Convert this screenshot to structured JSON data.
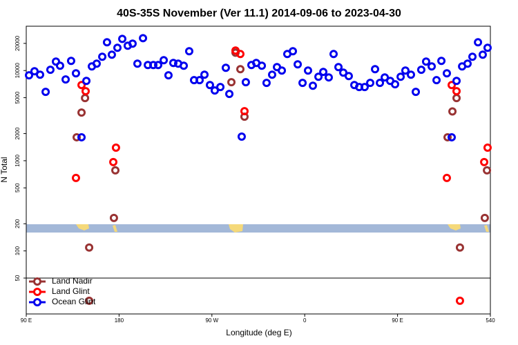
{
  "chart_data": {
    "type": "scatter",
    "title": "40S-35S November (Ver 11.1)   2014-09-06 to 2023-04-30",
    "x_label": "Longitude (deg E)",
    "y_label": "N Total",
    "log_y": true,
    "xlim": [
      90,
      540
    ],
    "ylim": [
      20,
      31000
    ],
    "xticks": [
      {
        "value": 90,
        "label": "90 E"
      },
      180,
      {
        "value": 270,
        "label": "90 W"
      },
      {
        "value": 360,
        "label": "0"
      },
      {
        "value": 450,
        "label": "90 E"
      },
      540
    ],
    "yticks": [
      50,
      100,
      200,
      500,
      1000,
      2000,
      5000,
      10000,
      20000
    ],
    "legend": "lower left",
    "series": [
      {
        "name": "Land Nadir",
        "color": "#993333",
        "x": [
          138.9,
          143.6,
          147,
          151,
          151,
          175,
          176.4,
          288.9,
          292.9,
          297.6,
          301.6,
          498.5,
          503.2,
          507.2,
          510.5,
          534.6,
          536.7
        ],
        "values": [
          1820,
          3420,
          4950,
          109,
          28,
          232,
          782,
          7420,
          15780,
          10350,
          3080,
          1820,
          3520,
          4950,
          109,
          232,
          782
        ]
      },
      {
        "name": "Land Glint",
        "color": "#ff0000",
        "x": [
          138.2,
          143.6,
          147.6,
          174.4,
          177,
          292.9,
          297.6,
          301.6,
          497.8,
          502.5,
          507.2,
          510.5,
          534,
          537.3
        ],
        "values": [
          644,
          6910,
          5900,
          966,
          1396,
          16650,
          15240,
          3540,
          644,
          6910,
          5900,
          28,
          966,
          1396
        ]
      },
      {
        "name": "Ocean Glint",
        "color": "#0000ee",
        "x": [
          92.7,
          98,
          103.4,
          108.8,
          113.4,
          118.8,
          122.8,
          128.2,
          133.5,
          138.2,
          143.6,
          148.3,
          153.6,
          158.3,
          163.7,
          168.3,
          173,
          178.4,
          183.1,
          188.4,
          193.1,
          197.8,
          203.2,
          207.9,
          213.2,
          217.9,
          223.3,
          227.9,
          232.6,
          237.3,
          242.7,
          248,
          252.7,
          258.1,
          262.8,
          268.1,
          272.8,
          278.2,
          283.5,
          286.9,
          298.9,
          302.9,
          308.3,
          313,
          318.4,
          323,
          328.4,
          333.1,
          337.8,
          343.1,
          348.5,
          353.2,
          357.9,
          363.2,
          367.9,
          373.3,
          378,
          383.3,
          388,
          392.7,
          397.4,
          402.7,
          408.1,
          412.8,
          418.1,
          423.5,
          428.2,
          432.9,
          437.6,
          442.9,
          447.6,
          453,
          457.6,
          463,
          467.7,
          473,
          477.7,
          483.1,
          487.8,
          492.5,
          497.8,
          502.5,
          507.2,
          512.6,
          517.9,
          522.6,
          528,
          532.6,
          537.3
        ],
        "values": [
          8850,
          9830,
          9000,
          5800,
          10190,
          12570,
          11300,
          7960,
          12790,
          9320,
          1820,
          7680,
          11120,
          11920,
          14220,
          20560,
          14990,
          17870,
          22440,
          18830,
          19850,
          11920,
          22850,
          11510,
          11510,
          11510,
          13020,
          8850,
          12130,
          11920,
          11300,
          16360,
          7820,
          7820,
          9000,
          6910,
          6010,
          6560,
          10730,
          5500,
          1850,
          7420,
          11510,
          12130,
          11300,
          7290,
          9000,
          10920,
          10000,
          15240,
          16360,
          11710,
          7290,
          10000,
          6790,
          8530,
          9660,
          8390,
          15240,
          10920,
          9490,
          8690,
          6910,
          6560,
          6560,
          7290,
          10350,
          7290,
          8390,
          7680,
          7040,
          8530,
          10000,
          9000,
          5800,
          10190,
          12570,
          11120,
          7820,
          12790,
          9320,
          1820,
          7680,
          11120,
          11920,
          14220,
          20560,
          14990,
          17870
        ]
      }
    ]
  }
}
